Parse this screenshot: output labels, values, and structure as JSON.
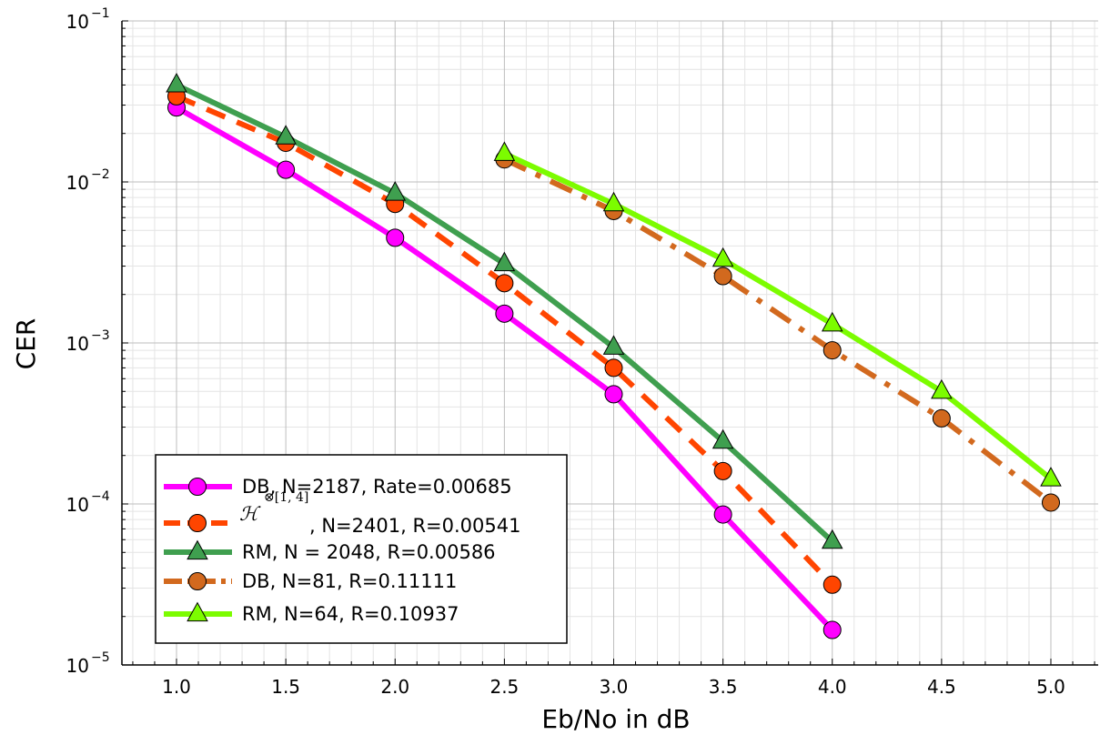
{
  "chart_data": {
    "type": "line",
    "xlabel": "Eb/No in dB",
    "ylabel": "CER",
    "xlim": [
      0.75,
      5.2
    ],
    "ylim_log10": [
      -5,
      -1
    ],
    "y_scale": "log",
    "grid": true,
    "minor_grid": true,
    "legend_position": "bottom-left",
    "x_ticks": [
      "1.0",
      "1.5",
      "2.0",
      "2.5",
      "3.0",
      "3.5",
      "4.0",
      "4.5",
      "5.0"
    ],
    "x_tick_values": [
      1.0,
      1.5,
      2.0,
      2.5,
      3.0,
      3.5,
      4.0,
      4.5,
      5.0
    ],
    "y_tick_base": "10",
    "y_tick_exponents": [
      "−5",
      "−4",
      "−3",
      "−2",
      "−1"
    ],
    "y_tick_values": [
      -5,
      -4,
      -3,
      -2,
      -1
    ],
    "series": [
      {
        "name": "DB, N=2187, Rate=0.00685",
        "color": "#ff00ff",
        "line": "solid",
        "marker": "circle",
        "x": [
          1.0,
          1.5,
          2.0,
          2.5,
          3.0,
          3.5,
          4.0
        ],
        "y": [
          0.029,
          0.0119,
          0.0045,
          0.00152,
          0.00048,
          8.6e-05,
          1.65e-05
        ]
      },
      {
        "name_math": "ℋ",
        "name_sup": "⊗[1, 4]",
        "name": ", N=2401, R=0.00541",
        "color": "#ff4500",
        "line": "dash",
        "marker": "circle",
        "x": [
          1.0,
          1.5,
          2.0,
          2.5,
          3.0,
          3.5,
          4.0
        ],
        "y": [
          0.034,
          0.0175,
          0.0073,
          0.00235,
          0.0007,
          0.00016,
          3.15e-05
        ]
      },
      {
        "name": "RM, N = 2048, R=0.00586",
        "color": "#3f9f4f",
        "line": "solid",
        "marker": "triangle",
        "x": [
          1.0,
          1.5,
          2.0,
          2.5,
          3.0,
          3.5,
          4.0
        ],
        "y": [
          0.04,
          0.019,
          0.0085,
          0.0031,
          0.00094,
          0.000245,
          5.85e-05
        ]
      },
      {
        "name": "DB, N=81, R=0.11111",
        "color": "#d2691e",
        "line": "dashdot",
        "marker": "circle",
        "x": [
          2.5,
          3.0,
          3.5,
          4.0,
          4.5,
          5.0
        ],
        "y": [
          0.0138,
          0.0066,
          0.0026,
          0.0009,
          0.00034,
          0.000102
        ]
      },
      {
        "name": "RM, N=64, R=0.10937",
        "color": "#7cfc00",
        "line": "solid",
        "marker": "triangle",
        "x": [
          2.5,
          3.0,
          3.5,
          4.0,
          4.5,
          5.0
        ],
        "y": [
          0.015,
          0.0073,
          0.0033,
          0.00131,
          0.0005,
          0.000143
        ]
      }
    ]
  }
}
